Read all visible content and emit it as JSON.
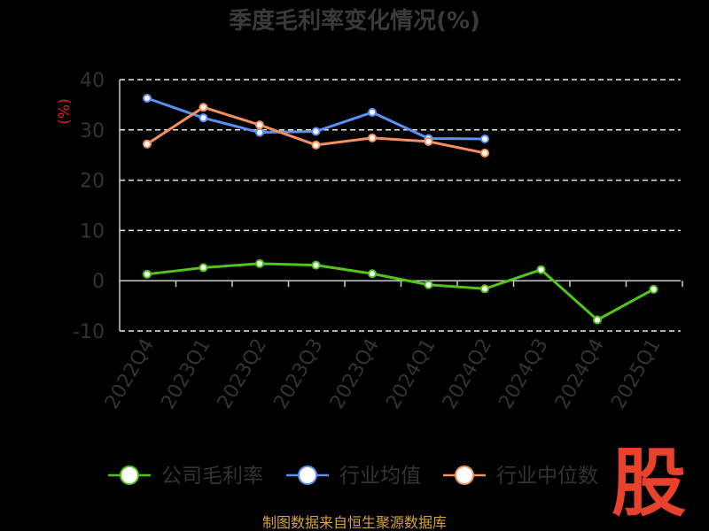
{
  "chart_data": {
    "type": "line",
    "title": "季度毛利率变化情况(%)",
    "ylabel": "(%)",
    "xlabel": "",
    "categories": [
      "2022Q4",
      "2023Q1",
      "2023Q2",
      "2023Q3",
      "2023Q4",
      "2024Q1",
      "2024Q2",
      "2024Q3",
      "2024Q4",
      "2025Q1"
    ],
    "ylim": [
      -10,
      40
    ],
    "yticks": [
      -10,
      0,
      10,
      20,
      30,
      40
    ],
    "grid": true,
    "legend_position": "bottom",
    "series": [
      {
        "name": "公司毛利率",
        "color": "#52c41a",
        "values": [
          1.3,
          2.6,
          3.4,
          3.1,
          1.4,
          -0.8,
          -1.6,
          2.2,
          -7.8,
          -1.7
        ]
      },
      {
        "name": "行业均值",
        "color": "#5b8ff9",
        "values": [
          36.3,
          32.4,
          29.5,
          29.7,
          33.5,
          28.3,
          28.2,
          null,
          null,
          null
        ]
      },
      {
        "name": "行业中位数",
        "color": "#f6905d",
        "values": [
          27.2,
          34.5,
          31.0,
          27.0,
          28.4,
          27.7,
          25.4,
          null,
          null,
          null
        ]
      }
    ]
  },
  "source_text": "制图数据来自恒生聚源数据库",
  "logo_text": "股"
}
